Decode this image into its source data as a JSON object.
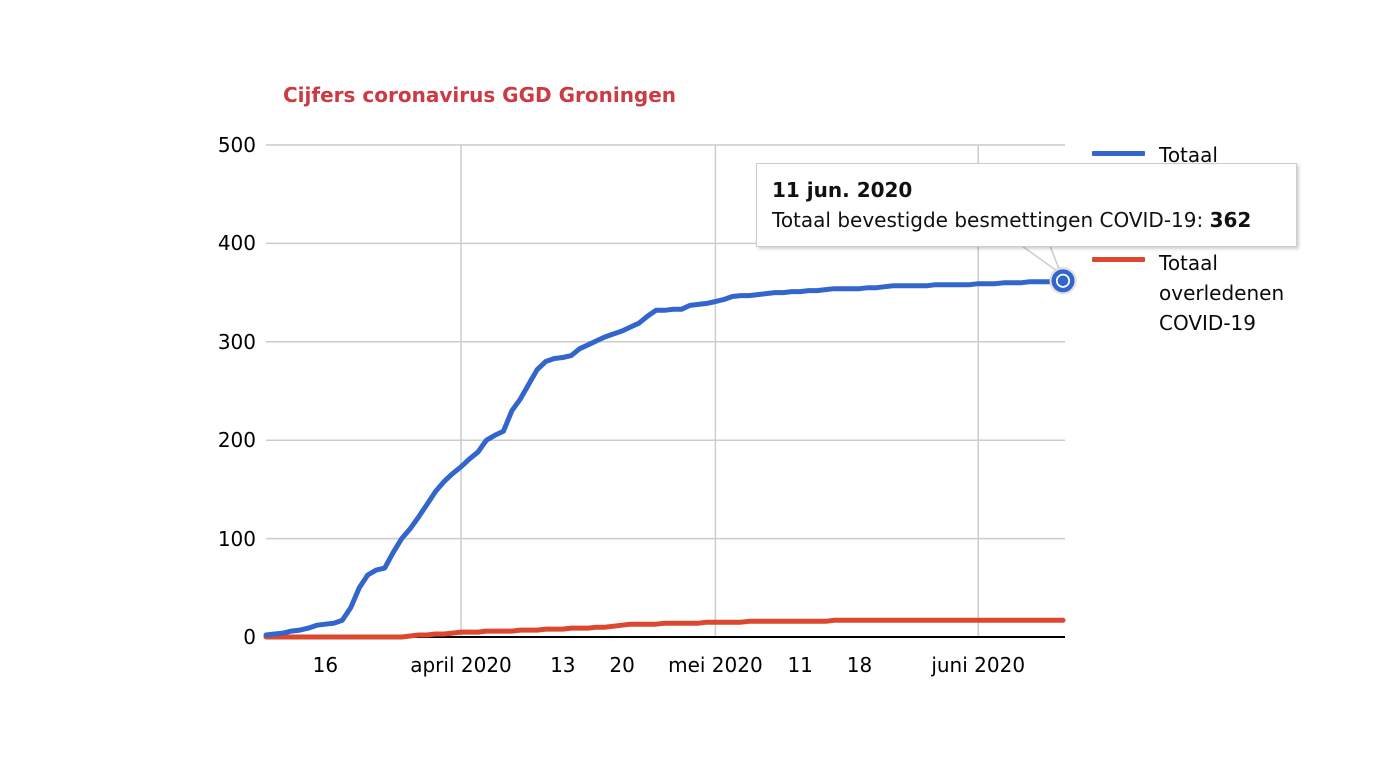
{
  "title": {
    "text": "Cijfers coronavirus GGD Groningen",
    "color": "#cc3b44"
  },
  "colors": {
    "gridline": "#cccccc",
    "axis": "#000000",
    "tooltip_border": "#cccccc",
    "tooltip_background": "#ffffff",
    "series_blue": "#3366cc",
    "series_red": "#d9482f"
  },
  "tooltip": {
    "date": "11 jun. 2020",
    "label": "Totaal bevestigde besmettingen COVID-19: ",
    "value": "362"
  },
  "legend": {
    "items": [
      {
        "label": "Totaal",
        "color": "#3366cc"
      },
      {
        "label": "Totaal overledenen COVID-19",
        "color": "#d9482f"
      }
    ]
  },
  "chart_data": {
    "type": "line",
    "title": "Cijfers coronavirus GGD Groningen",
    "x_start_date": "2020-03-09",
    "x_end_date": "2020-06-11",
    "x_unit": "day",
    "ylim": [
      0,
      500
    ],
    "yticks": [
      0,
      100,
      200,
      300,
      400,
      500
    ],
    "xticks": [
      {
        "label": "16",
        "day": 7
      },
      {
        "label": "april 2020",
        "day": 23
      },
      {
        "label": "13",
        "day": 35
      },
      {
        "label": "20",
        "day": 42
      },
      {
        "label": "mei 2020",
        "day": 53
      },
      {
        "label": "11",
        "day": 63
      },
      {
        "label": "18",
        "day": 70
      },
      {
        "label": "juni 2020",
        "day": 84
      }
    ],
    "month_gridline_days": [
      23,
      53,
      84
    ],
    "grid": true,
    "legend_position": "right",
    "series": [
      {
        "name": "Totaal bevestigde besmettingen COVID-19",
        "color": "#3366cc",
        "values": [
          2,
          3,
          4,
          6,
          7,
          9,
          12,
          13,
          14,
          17,
          30,
          50,
          63,
          68,
          70,
          86,
          100,
          110,
          122,
          135,
          148,
          158,
          166,
          173,
          181,
          188,
          200,
          205,
          209,
          230,
          242,
          257,
          272,
          280,
          283,
          284,
          286,
          293,
          297,
          301,
          305,
          308,
          311,
          315,
          319,
          326,
          332,
          332,
          333,
          333,
          337,
          338,
          339,
          341,
          343,
          346,
          347,
          347,
          348,
          349,
          350,
          350,
          351,
          351,
          352,
          352,
          353,
          354,
          354,
          354,
          354,
          355,
          355,
          356,
          357,
          357,
          357,
          357,
          357,
          358,
          358,
          358,
          358,
          358,
          359,
          359,
          359,
          360,
          360,
          360,
          361,
          361,
          361,
          361,
          362
        ]
      },
      {
        "name": "Totaal overledenen COVID-19",
        "color": "#d9482f",
        "values": [
          0,
          0,
          0,
          0,
          0,
          0,
          0,
          0,
          0,
          0,
          0,
          0,
          0,
          0,
          0,
          0,
          0,
          1,
          2,
          2,
          3,
          3,
          4,
          5,
          5,
          5,
          6,
          6,
          6,
          6,
          7,
          7,
          7,
          8,
          8,
          8,
          9,
          9,
          9,
          10,
          10,
          11,
          12,
          13,
          13,
          13,
          13,
          14,
          14,
          14,
          14,
          14,
          15,
          15,
          15,
          15,
          15,
          16,
          16,
          16,
          16,
          16,
          16,
          16,
          16,
          16,
          16,
          17,
          17,
          17,
          17,
          17,
          17,
          17,
          17,
          17,
          17,
          17,
          17,
          17,
          17,
          17,
          17,
          17,
          17,
          17,
          17,
          17,
          17,
          17,
          17,
          17,
          17,
          17,
          17
        ]
      }
    ],
    "highlighted_point": {
      "series": "Totaal bevestigde besmettingen COVID-19",
      "date": "11 jun. 2020",
      "day": 94,
      "value": 362
    }
  }
}
